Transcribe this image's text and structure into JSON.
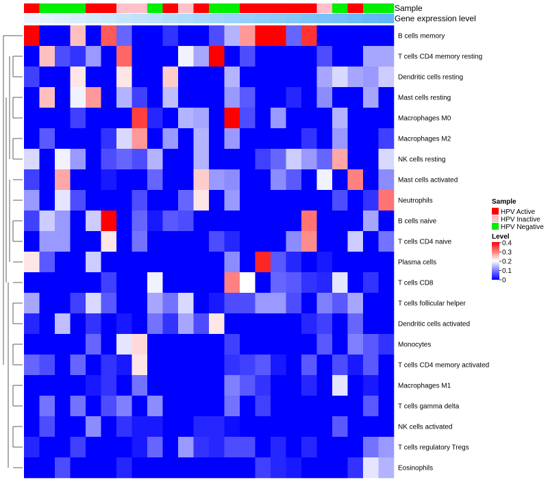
{
  "chart_data": {
    "type": "heatmap",
    "track_labels": {
      "sample": "Sample",
      "gene_expression": "Gene expression level"
    },
    "rows": [
      "B cells memory",
      "T cells CD4 memory resting",
      "Dendritic cells resting",
      "Mast cells resting",
      "Macrophages M0",
      "Macrophages M2",
      "NK cells resting",
      "Mast cells activated",
      "Neutrophils",
      "B cells naive",
      "T cells CD4 naive",
      "Plasma cells",
      "T cells CD8",
      "T cells follicular helper",
      "Dendritic cells activated",
      "Monocytes",
      "T cells CD4 memory activated",
      "Macrophages M1",
      "T cells gamma delta",
      "NK cells activated",
      "T cells regulatory  Tregs",
      "Eosinophils"
    ],
    "sample_groups": [
      "A",
      "N",
      "N",
      "N",
      "A",
      "A",
      "I",
      "I",
      "N",
      "A",
      "I",
      "A",
      "N",
      "N",
      "A",
      "A",
      "A",
      "A",
      "A",
      "I",
      "N",
      "A",
      "N",
      "N"
    ],
    "gene_expression": [
      0.02,
      0.04,
      0.06,
      0.08,
      0.1,
      0.12,
      0.14,
      0.16,
      0.18,
      0.2,
      0.22,
      0.24,
      0.26,
      0.28,
      0.3,
      0.32,
      0.34,
      0.36,
      0.38,
      0.4,
      0.42,
      0.44,
      0.46,
      0.48
    ],
    "values": [
      [
        0.4,
        0,
        0,
        0.25,
        0,
        0.33,
        0.08,
        0,
        0,
        0.04,
        0,
        0,
        0.06,
        0.14,
        0.28,
        0.4,
        0.4,
        0.08,
        0.36,
        0,
        0,
        0,
        0,
        0
      ],
      [
        0,
        0.25,
        0.06,
        0.04,
        0.12,
        0,
        0.32,
        0,
        0,
        0,
        0.19,
        0.13,
        0.4,
        0,
        0.06,
        0,
        0,
        0,
        0,
        0.06,
        0,
        0,
        0.13,
        0.13
      ],
      [
        0.05,
        0,
        0,
        0.22,
        0,
        0,
        0.22,
        0,
        0,
        0.24,
        0,
        0,
        0,
        0.14,
        0,
        0,
        0,
        0,
        0,
        0.13,
        0.17,
        0.13,
        0.12,
        0.16
      ],
      [
        0,
        0.25,
        0,
        0.19,
        0.28,
        0,
        0.14,
        0.05,
        0,
        0.15,
        0,
        0,
        0,
        0.12,
        0.07,
        0,
        0,
        0.03,
        0,
        0.11,
        0,
        0,
        0.13,
        0
      ],
      [
        0,
        0,
        0,
        0.05,
        0,
        0,
        0,
        0.35,
        0.03,
        0,
        0.14,
        0.13,
        0,
        0.4,
        0.06,
        0,
        0.12,
        0,
        0,
        0,
        0.14,
        0,
        0,
        0
      ],
      [
        0,
        0.07,
        0,
        0,
        0,
        0.04,
        0.17,
        0.28,
        0,
        0.12,
        0,
        0.14,
        0,
        0.12,
        0,
        0,
        0,
        0,
        0.04,
        0,
        0.12,
        0,
        0,
        0.05
      ],
      [
        0.17,
        0,
        0.19,
        0.12,
        0,
        0.06,
        0.08,
        0.06,
        0.14,
        0,
        0,
        0.14,
        0,
        0,
        0,
        0.05,
        0.08,
        0.16,
        0.12,
        0.08,
        0.27,
        0,
        0,
        0.17
      ],
      [
        0.05,
        0,
        0.27,
        0,
        0,
        0.02,
        0,
        0,
        0.08,
        0,
        0,
        0.24,
        0.12,
        0.11,
        0,
        0,
        0.11,
        0.07,
        0,
        0.19,
        0,
        0.3,
        0,
        0.11
      ],
      [
        0.12,
        0,
        0.18,
        0.06,
        0,
        0,
        0,
        0.06,
        0,
        0,
        0.08,
        0.22,
        0,
        0.12,
        0,
        0,
        0,
        0,
        0,
        0,
        0.06,
        0,
        0.04,
        0.31
      ],
      [
        0.05,
        0.16,
        0.12,
        0,
        0.16,
        0.4,
        0,
        0.08,
        0.02,
        0.07,
        0.06,
        0,
        0,
        0,
        0,
        0,
        0,
        0,
        0.31,
        0,
        0,
        0,
        0.13,
        0
      ],
      [
        0,
        0.12,
        0.12,
        0,
        0,
        0.22,
        0,
        0.09,
        0,
        0,
        0,
        0,
        0.06,
        0.03,
        0,
        0,
        0,
        0.11,
        0.29,
        0,
        0,
        0.16,
        0,
        0.09
      ],
      [
        0.22,
        0.07,
        0,
        0,
        0.16,
        0,
        0,
        0,
        0,
        0,
        0,
        0,
        0,
        0.11,
        0,
        0.37,
        0.07,
        0.03,
        0,
        0.02,
        0,
        0,
        0,
        0
      ],
      [
        0,
        0,
        0,
        0,
        0,
        0.05,
        0,
        0,
        0.19,
        0,
        0,
        0,
        0,
        0.3,
        0.2,
        0,
        0.08,
        0.07,
        0.04,
        0.03,
        0.18,
        0,
        0.04,
        0
      ],
      [
        0.13,
        0,
        0,
        0.05,
        0.17,
        0.07,
        0,
        0,
        0.13,
        0.09,
        0.17,
        0,
        0.02,
        0.06,
        0.06,
        0.12,
        0.12,
        0.06,
        0,
        0.1,
        0.07,
        0.13,
        0,
        0
      ],
      [
        0.03,
        0,
        0.15,
        0,
        0.04,
        0,
        0.02,
        0,
        0.09,
        0.04,
        0.13,
        0.06,
        0.22,
        0,
        0,
        0,
        0,
        0,
        0.03,
        0.05,
        0,
        0.08,
        0,
        0
      ],
      [
        0,
        0,
        0,
        0,
        0.08,
        0,
        0.18,
        0.23,
        0,
        0,
        0,
        0,
        0,
        0.05,
        0,
        0,
        0,
        0,
        0,
        0.07,
        0,
        0.1,
        0.07,
        0.04
      ],
      [
        0.08,
        0.06,
        0,
        0.08,
        0,
        0.04,
        0.02,
        0.22,
        0,
        0,
        0,
        0,
        0,
        0.04,
        0.05,
        0.07,
        0.02,
        0,
        0.07,
        0,
        0.06,
        0.02,
        0.07,
        0
      ],
      [
        0,
        0,
        0,
        0,
        0.02,
        0.04,
        0,
        0.09,
        0,
        0,
        0,
        0,
        0,
        0.1,
        0.07,
        0.04,
        0,
        0,
        0.03,
        0,
        0.18,
        0,
        0.02,
        0
      ],
      [
        0,
        0.09,
        0,
        0.09,
        0,
        0.06,
        0.1,
        0,
        0.11,
        0,
        0,
        0,
        0,
        0.09,
        0,
        0.05,
        0,
        0,
        0,
        0,
        0,
        0,
        0.07,
        0
      ],
      [
        0,
        0.06,
        0,
        0,
        0.11,
        0,
        0.04,
        0.02,
        0.02,
        0,
        0,
        0.03,
        0.03,
        0.01,
        0,
        0,
        0,
        0,
        0,
        0,
        0.07,
        0,
        0,
        0
      ],
      [
        0.03,
        0,
        0,
        0.05,
        0,
        0,
        0,
        0.02,
        0.08,
        0,
        0.12,
        0.04,
        0.03,
        0.06,
        0.06,
        0,
        0.03,
        0,
        0.03,
        0,
        0,
        0,
        0.09,
        0.12
      ],
      [
        0,
        0,
        0.06,
        0,
        0,
        0,
        0.03,
        0,
        0,
        0,
        0,
        0,
        0,
        0,
        0,
        0.05,
        0.03,
        0.02,
        0,
        0,
        0,
        0.04,
        0.18,
        0.14
      ]
    ],
    "color_scale": {
      "min": 0,
      "max": 0.4,
      "low": "#0000ff",
      "mid": "#ffffff",
      "high": "#ff0000",
      "mid_value": 0.2
    },
    "gene_expression_colors": {
      "low": "#f0f8ff",
      "high": "#5ab4f8"
    },
    "legend": {
      "sample_title": "Sample",
      "sample_entries": [
        {
          "label": "HPV Active",
          "color": "#ff0000"
        },
        {
          "label": "HPV Inactive",
          "color": "#ffc0cb"
        },
        {
          "label": "HPV Negative",
          "color": "#00ee00"
        }
      ],
      "level_title": "Level",
      "level_ticks": [
        "0.4",
        "0.3",
        "0.2",
        "0.1",
        "0"
      ],
      "position": "right"
    }
  }
}
